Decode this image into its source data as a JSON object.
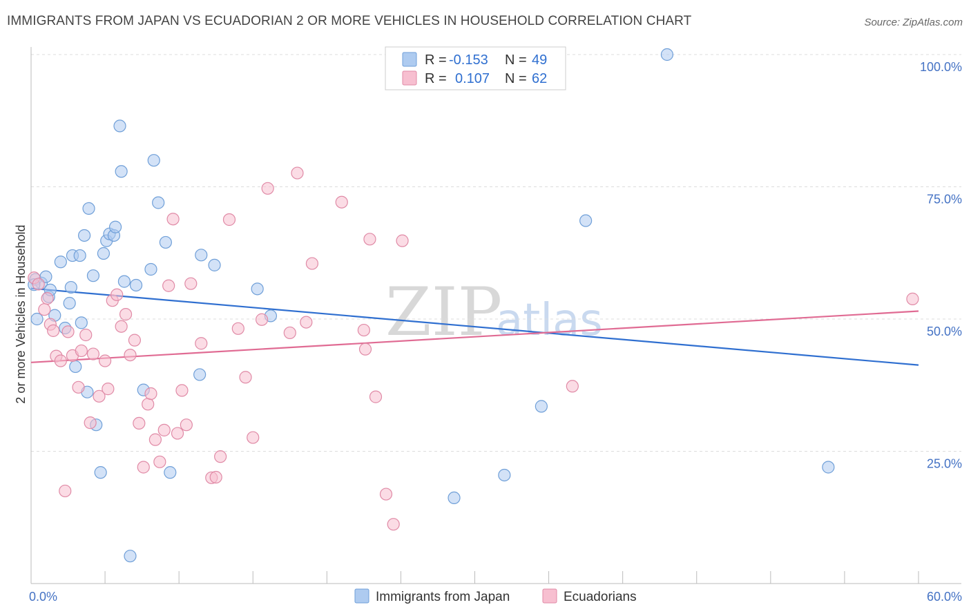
{
  "title": "IMMIGRANTS FROM JAPAN VS ECUADORIAN 2 OR MORE VEHICLES IN HOUSEHOLD CORRELATION CHART",
  "source": "Source: ZipAtlas.com",
  "watermark": {
    "zip": "ZIP",
    "atlas": "atlas"
  },
  "legend": {
    "rows": [
      {
        "r_label": "R =",
        "r_value": "-0.153",
        "n_label": "N =",
        "n_value": "49",
        "color": "#aecbf0",
        "stroke": "#6f9fd8"
      },
      {
        "r_label": "R =",
        "r_value": "0.107",
        "n_label": "N =",
        "n_value": "62",
        "color": "#f7bfd0",
        "stroke": "#e08aa6"
      }
    ]
  },
  "bottom_legend": [
    {
      "label": "Immigrants from Japan",
      "color": "#aecbf0",
      "stroke": "#6f9fd8"
    },
    {
      "label": "Ecuadorians",
      "color": "#f7bfd0",
      "stroke": "#e08aa6"
    }
  ],
  "chart_data": {
    "type": "scatter",
    "ylabel": "2 or more Vehicles in Household",
    "xlabel": "",
    "xlim": [
      0,
      60
    ],
    "ylim": [
      0,
      100
    ],
    "x_tick_labels": [
      "0.0%",
      "60.0%"
    ],
    "y_ticks": [
      25,
      50,
      75,
      100
    ],
    "y_tick_labels": [
      "25.0%",
      "50.0%",
      "75.0%",
      "100.0%"
    ],
    "grid": true,
    "series": [
      {
        "name": "Immigrants from Japan",
        "color": "#aecbf0",
        "stroke": "#6f9fd8",
        "trend": {
          "x": [
            0,
            60
          ],
          "y": [
            55.8,
            41.3
          ],
          "color": "#2f6fd0"
        },
        "points": [
          [
            0.3,
            57.5
          ],
          [
            0.4,
            50.0
          ],
          [
            0.7,
            56.8
          ],
          [
            1.0,
            58.0
          ],
          [
            1.2,
            54.2
          ],
          [
            1.3,
            55.5
          ],
          [
            1.6,
            50.7
          ],
          [
            2.0,
            60.8
          ],
          [
            2.3,
            48.3
          ],
          [
            2.6,
            53.0
          ],
          [
            2.7,
            56.0
          ],
          [
            2.8,
            62.0
          ],
          [
            3.0,
            41.0
          ],
          [
            3.3,
            62.0
          ],
          [
            3.4,
            49.3
          ],
          [
            3.6,
            65.8
          ],
          [
            3.8,
            36.2
          ],
          [
            3.9,
            70.9
          ],
          [
            4.2,
            58.2
          ],
          [
            4.4,
            30.0
          ],
          [
            4.7,
            21.0
          ],
          [
            4.9,
            62.4
          ],
          [
            5.1,
            64.8
          ],
          [
            5.3,
            66.1
          ],
          [
            5.6,
            65.8
          ],
          [
            5.7,
            67.4
          ],
          [
            6.0,
            86.5
          ],
          [
            6.1,
            77.9
          ],
          [
            6.3,
            57.1
          ],
          [
            6.7,
            5.2
          ],
          [
            7.1,
            56.4
          ],
          [
            7.6,
            36.6
          ],
          [
            8.1,
            59.4
          ],
          [
            8.3,
            80.0
          ],
          [
            8.6,
            72.0
          ],
          [
            9.1,
            64.5
          ],
          [
            9.4,
            21.0
          ],
          [
            11.4,
            39.5
          ],
          [
            11.5,
            62.1
          ],
          [
            12.4,
            60.2
          ],
          [
            15.3,
            55.7
          ],
          [
            16.2,
            50.6
          ],
          [
            28.6,
            16.2
          ],
          [
            32.0,
            20.5
          ],
          [
            34.5,
            33.5
          ],
          [
            37.5,
            68.6
          ],
          [
            43.0,
            100.0
          ],
          [
            53.9,
            22.0
          ],
          [
            0.2,
            56.5
          ]
        ]
      },
      {
        "name": "Ecuadorians",
        "color": "#f7bfd0",
        "stroke": "#e08aa6",
        "trend": {
          "x": [
            0,
            60
          ],
          "y": [
            41.8,
            51.5
          ],
          "color": "#e06b93"
        },
        "points": [
          [
            0.2,
            57.8
          ],
          [
            0.5,
            56.6
          ],
          [
            0.9,
            51.8
          ],
          [
            1.1,
            53.9
          ],
          [
            1.3,
            49.0
          ],
          [
            1.5,
            47.8
          ],
          [
            1.7,
            43.0
          ],
          [
            2.0,
            42.1
          ],
          [
            2.3,
            17.5
          ],
          [
            2.5,
            47.6
          ],
          [
            2.8,
            43.1
          ],
          [
            3.2,
            37.1
          ],
          [
            3.4,
            44.0
          ],
          [
            3.7,
            47.0
          ],
          [
            4.0,
            30.4
          ],
          [
            4.2,
            43.4
          ],
          [
            4.6,
            35.4
          ],
          [
            5.0,
            42.1
          ],
          [
            5.2,
            36.8
          ],
          [
            5.5,
            53.5
          ],
          [
            5.8,
            54.6
          ],
          [
            6.1,
            48.6
          ],
          [
            6.4,
            50.9
          ],
          [
            6.7,
            43.2
          ],
          [
            7.0,
            46.0
          ],
          [
            7.3,
            30.3
          ],
          [
            7.6,
            22.0
          ],
          [
            7.9,
            33.9
          ],
          [
            8.1,
            35.9
          ],
          [
            8.4,
            27.2
          ],
          [
            8.7,
            23.0
          ],
          [
            9.0,
            29.0
          ],
          [
            9.3,
            56.3
          ],
          [
            9.6,
            68.9
          ],
          [
            9.9,
            28.4
          ],
          [
            10.2,
            36.5
          ],
          [
            10.5,
            30.0
          ],
          [
            10.8,
            56.7
          ],
          [
            11.5,
            45.4
          ],
          [
            12.2,
            20.0
          ],
          [
            12.5,
            20.1
          ],
          [
            12.8,
            24.0
          ],
          [
            13.4,
            68.8
          ],
          [
            14.0,
            48.2
          ],
          [
            14.5,
            39.0
          ],
          [
            15.0,
            27.6
          ],
          [
            15.6,
            49.9
          ],
          [
            16.0,
            74.7
          ],
          [
            17.5,
            47.4
          ],
          [
            18.0,
            77.6
          ],
          [
            18.6,
            49.4
          ],
          [
            19.0,
            60.5
          ],
          [
            21.0,
            72.1
          ],
          [
            22.5,
            47.9
          ],
          [
            22.6,
            44.3
          ],
          [
            22.9,
            65.1
          ],
          [
            23.3,
            35.3
          ],
          [
            24.0,
            16.9
          ],
          [
            24.5,
            11.2
          ],
          [
            25.1,
            64.8
          ],
          [
            36.6,
            37.3
          ],
          [
            59.6,
            53.8
          ]
        ]
      }
    ]
  }
}
